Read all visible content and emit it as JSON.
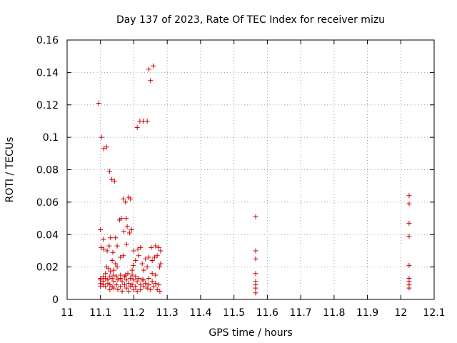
{
  "chart_data": {
    "type": "scatter",
    "title": "Day 137 of 2023, Rate Of TEC Index for receiver mizu",
    "xlabel": "GPS time / hours",
    "ylabel": "ROTI / TECUs",
    "xlim": [
      11,
      12.1
    ],
    "ylim": [
      0,
      0.16
    ],
    "x_ticks": [
      11,
      11.1,
      11.2,
      11.3,
      11.4,
      11.5,
      11.6,
      11.7,
      11.8,
      11.9,
      12,
      12.1
    ],
    "x_tick_labels": [
      "11",
      "11.1",
      "11.2",
      "11.3",
      "11.4",
      "11.5",
      "11.6",
      "11.7",
      "11.8",
      "11.9",
      "12",
      "12.1"
    ],
    "y_ticks": [
      0,
      0.02,
      0.04,
      0.06,
      0.08,
      0.1,
      0.12,
      0.14,
      0.16
    ],
    "y_tick_labels": [
      "0",
      "0.02",
      "0.04",
      "0.06",
      "0.08",
      "0.1",
      "0.12",
      "0.14",
      "0.16"
    ],
    "grid": true,
    "marker": "+",
    "color": "#cc0000",
    "series": [
      {
        "name": "ROTI",
        "points": [
          [
            11.095,
            0.121
          ],
          [
            11.103,
            0.1
          ],
          [
            11.11,
            0.093
          ],
          [
            11.118,
            0.094
          ],
          [
            11.127,
            0.079
          ],
          [
            11.134,
            0.074
          ],
          [
            11.142,
            0.073
          ],
          [
            11.21,
            0.106
          ],
          [
            11.218,
            0.11
          ],
          [
            11.228,
            0.11
          ],
          [
            11.24,
            0.11
          ],
          [
            11.245,
            0.142
          ],
          [
            11.25,
            0.135
          ],
          [
            11.258,
            0.144
          ],
          [
            11.168,
            0.062
          ],
          [
            11.175,
            0.06
          ],
          [
            11.185,
            0.063
          ],
          [
            11.19,
            0.062
          ],
          [
            11.157,
            0.049
          ],
          [
            11.162,
            0.05
          ],
          [
            11.177,
            0.05
          ],
          [
            11.1,
            0.043
          ],
          [
            11.108,
            0.037
          ],
          [
            11.13,
            0.038
          ],
          [
            11.145,
            0.038
          ],
          [
            11.17,
            0.042
          ],
          [
            11.18,
            0.045
          ],
          [
            11.187,
            0.041
          ],
          [
            11.193,
            0.043
          ],
          [
            11.102,
            0.032
          ],
          [
            11.11,
            0.031
          ],
          [
            11.12,
            0.03
          ],
          [
            11.126,
            0.033
          ],
          [
            11.137,
            0.029
          ],
          [
            11.15,
            0.033
          ],
          [
            11.178,
            0.034
          ],
          [
            11.2,
            0.03
          ],
          [
            11.212,
            0.031
          ],
          [
            11.22,
            0.032
          ],
          [
            11.265,
            0.033
          ],
          [
            11.275,
            0.032
          ],
          [
            11.28,
            0.03
          ],
          [
            11.252,
            0.032
          ],
          [
            11.118,
            0.02
          ],
          [
            11.125,
            0.019
          ],
          [
            11.135,
            0.024
          ],
          [
            11.145,
            0.022
          ],
          [
            11.16,
            0.026
          ],
          [
            11.168,
            0.027
          ],
          [
            11.198,
            0.021
          ],
          [
            11.205,
            0.024
          ],
          [
            11.225,
            0.022
          ],
          [
            11.235,
            0.025
          ],
          [
            11.24,
            0.02
          ],
          [
            11.245,
            0.026
          ],
          [
            11.255,
            0.024
          ],
          [
            11.262,
            0.026
          ],
          [
            11.27,
            0.027
          ],
          [
            11.277,
            0.02
          ],
          [
            11.28,
            0.022
          ],
          [
            11.23,
            0.018
          ],
          [
            11.215,
            0.027
          ],
          [
            11.195,
            0.018
          ],
          [
            11.14,
            0.018
          ],
          [
            11.15,
            0.02
          ],
          [
            11.13,
            0.017
          ],
          [
            11.1,
            0.013
          ],
          [
            11.1,
            0.01
          ],
          [
            11.1,
            0.008
          ],
          [
            11.1,
            0.012
          ],
          [
            11.108,
            0.014
          ],
          [
            11.108,
            0.009
          ],
          [
            11.108,
            0.011
          ],
          [
            11.115,
            0.013
          ],
          [
            11.115,
            0.008
          ],
          [
            11.122,
            0.012
          ],
          [
            11.122,
            0.01
          ],
          [
            11.128,
            0.014
          ],
          [
            11.128,
            0.009
          ],
          [
            11.128,
            0.006
          ],
          [
            11.135,
            0.013
          ],
          [
            11.135,
            0.008
          ],
          [
            11.14,
            0.015
          ],
          [
            11.14,
            0.011
          ],
          [
            11.14,
            0.007
          ],
          [
            11.148,
            0.014
          ],
          [
            11.148,
            0.009
          ],
          [
            11.152,
            0.012
          ],
          [
            11.152,
            0.006
          ],
          [
            11.16,
            0.013
          ],
          [
            11.16,
            0.008
          ],
          [
            11.165,
            0.011
          ],
          [
            11.165,
            0.005
          ],
          [
            11.172,
            0.014
          ],
          [
            11.172,
            0.009
          ],
          [
            11.178,
            0.012
          ],
          [
            11.178,
            0.007
          ],
          [
            11.182,
            0.016
          ],
          [
            11.185,
            0.01
          ],
          [
            11.185,
            0.005
          ],
          [
            11.19,
            0.013
          ],
          [
            11.19,
            0.008
          ],
          [
            11.195,
            0.015
          ],
          [
            11.195,
            0.009
          ],
          [
            11.2,
            0.012
          ],
          [
            11.2,
            0.006
          ],
          [
            11.205,
            0.014
          ],
          [
            11.205,
            0.008
          ],
          [
            11.21,
            0.011
          ],
          [
            11.21,
            0.005
          ],
          [
            11.215,
            0.013
          ],
          [
            11.22,
            0.009
          ],
          [
            11.22,
            0.006
          ],
          [
            11.225,
            0.012
          ],
          [
            11.23,
            0.008
          ],
          [
            11.235,
            0.01
          ],
          [
            11.24,
            0.007
          ],
          [
            11.245,
            0.009
          ],
          [
            11.25,
            0.006
          ],
          [
            11.255,
            0.011
          ],
          [
            11.26,
            0.008
          ],
          [
            11.265,
            0.01
          ],
          [
            11.27,
            0.006
          ],
          [
            11.275,
            0.009
          ],
          [
            11.278,
            0.005
          ],
          [
            11.265,
            0.015
          ],
          [
            11.255,
            0.016
          ],
          [
            11.245,
            0.013
          ],
          [
            11.23,
            0.012
          ],
          [
            11.175,
            0.015
          ],
          [
            11.115,
            0.016
          ],
          [
            11.16,
            0.015
          ],
          [
            11.565,
            0.051
          ],
          [
            11.565,
            0.03
          ],
          [
            11.565,
            0.025
          ],
          [
            11.565,
            0.016
          ],
          [
            11.565,
            0.011
          ],
          [
            11.565,
            0.009
          ],
          [
            11.565,
            0.007
          ],
          [
            11.565,
            0.004
          ],
          [
            12.025,
            0.064
          ],
          [
            12.025,
            0.059
          ],
          [
            12.025,
            0.047
          ],
          [
            12.025,
            0.039
          ],
          [
            12.025,
            0.021
          ],
          [
            12.025,
            0.013
          ],
          [
            12.025,
            0.011
          ],
          [
            12.025,
            0.009
          ],
          [
            12.025,
            0.007
          ]
        ]
      }
    ]
  }
}
